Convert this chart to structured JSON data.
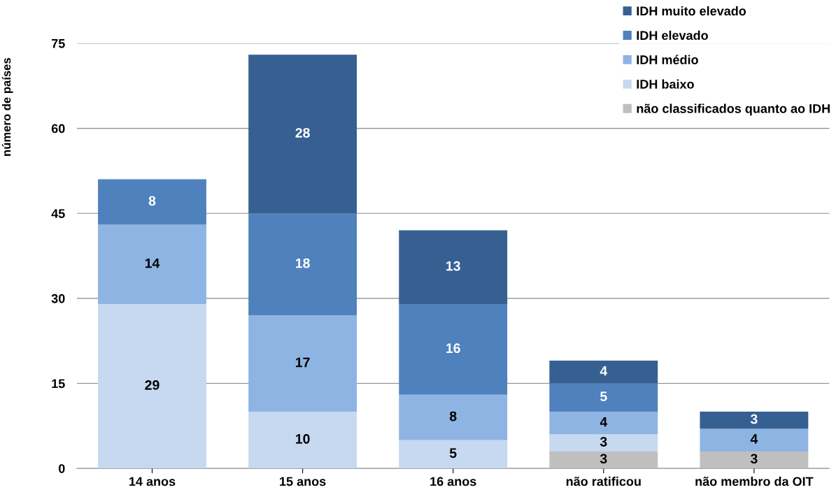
{
  "chart_data": {
    "type": "bar",
    "stacked": true,
    "ylabel": "número de países",
    "categories": [
      "14 anos",
      "15 anos",
      "16 anos",
      "não ratificou",
      "não membro da OIT"
    ],
    "series": [
      {
        "name": "não classificados quanto ao IDH",
        "color": "#bfbfbf",
        "values": [
          null,
          null,
          null,
          3,
          3
        ]
      },
      {
        "name": "IDH baixo",
        "color": "#c6d9f1",
        "values": [
          29,
          10,
          5,
          3,
          null
        ]
      },
      {
        "name": "IDH médio",
        "color": "#8eb4e3",
        "values": [
          14,
          17,
          8,
          4,
          4
        ]
      },
      {
        "name": "IDH elevado",
        "color": "#4f81bd",
        "values": [
          8,
          18,
          16,
          5,
          null
        ]
      },
      {
        "name": "IDH muito elevado",
        "color": "#376092",
        "values": [
          null,
          28,
          13,
          4,
          3
        ]
      }
    ],
    "ylim": [
      0,
      75
    ],
    "yticks": [
      0,
      15,
      30,
      45,
      60,
      75
    ],
    "grid": "y",
    "legend": "top right",
    "data_labels": true
  }
}
